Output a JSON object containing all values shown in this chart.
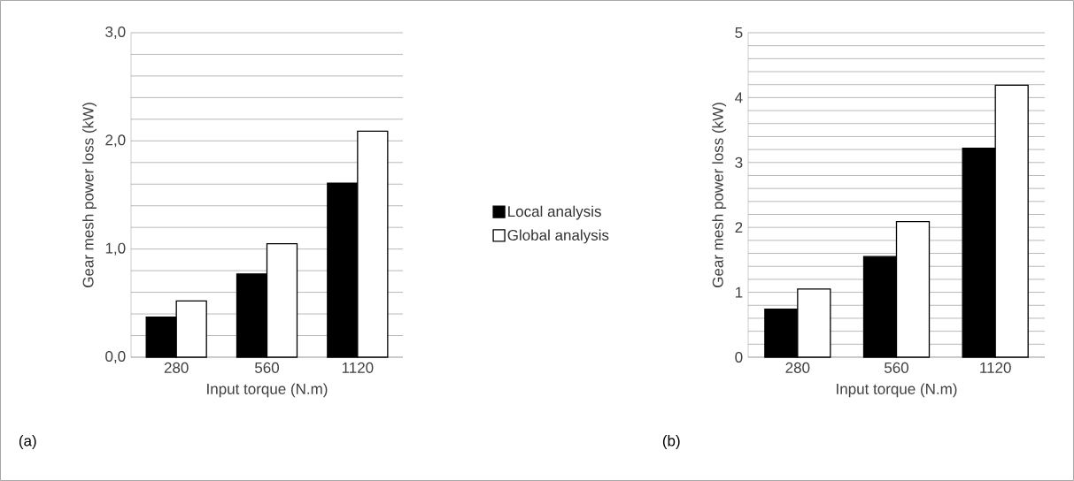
{
  "chart_data": [
    {
      "type": "bar",
      "xlabel": "Input torque (N.m)",
      "ylabel": "Gear mesh power loss (kW)",
      "categories": [
        "280",
        "560",
        "1120"
      ],
      "series": [
        {
          "name": "Local analysis",
          "color": "#000000",
          "values": [
            0.37,
            0.77,
            1.61
          ]
        },
        {
          "name": "Global analysis",
          "color": "#ffffff",
          "values": [
            0.52,
            1.05,
            2.09
          ]
        }
      ],
      "ylim": [
        0,
        3
      ],
      "yticks": [
        {
          "value": 0,
          "label": "0,0"
        },
        {
          "value": 0.2,
          "label": null
        },
        {
          "value": 0.4,
          "label": null
        },
        {
          "value": 0.6,
          "label": null
        },
        {
          "value": 0.8,
          "label": null
        },
        {
          "value": 1,
          "label": "1,0"
        },
        {
          "value": 1.2,
          "label": null
        },
        {
          "value": 1.4,
          "label": null
        },
        {
          "value": 1.6,
          "label": null
        },
        {
          "value": 1.8,
          "label": null
        },
        {
          "value": 2,
          "label": "2,0"
        },
        {
          "value": 2.2,
          "label": null
        },
        {
          "value": 2.4,
          "label": null
        },
        {
          "value": 2.6,
          "label": null
        },
        {
          "value": 2.8,
          "label": null
        },
        {
          "value": 3,
          "label": "3,0"
        }
      ],
      "grid": "y",
      "legend": "right",
      "annotations": [
        "(a)"
      ]
    },
    {
      "type": "bar",
      "xlabel": "Input torque (N.m)",
      "ylabel": "Gear mesh power loss (kW)",
      "categories": [
        "280",
        "560",
        "1120"
      ],
      "series": [
        {
          "color": "#000000",
          "values": [
            0.74,
            1.55,
            3.22
          ]
        },
        {
          "color": "#ffffff",
          "values": [
            1.05,
            2.09,
            4.19
          ]
        }
      ],
      "ylim": [
        0,
        5
      ],
      "yticks": [
        0,
        {
          "value": 0.2,
          "label": null
        },
        {
          "value": 0.4,
          "label": null
        },
        {
          "value": 0.6,
          "label": null
        },
        {
          "value": 0.8,
          "label": null
        },
        1,
        {
          "value": 1.2,
          "label": null
        },
        {
          "value": 1.4,
          "label": null
        },
        {
          "value": 1.6,
          "label": null
        },
        {
          "value": 1.8,
          "label": null
        },
        2,
        {
          "value": 2.2,
          "label": null
        },
        {
          "value": 2.4,
          "label": null
        },
        {
          "value": 2.6,
          "label": null
        },
        {
          "value": 2.8,
          "label": null
        },
        3,
        {
          "value": 3.2,
          "label": null
        },
        {
          "value": 3.4,
          "label": null
        },
        {
          "value": 3.6,
          "label": null
        },
        {
          "value": 3.8,
          "label": null
        },
        4,
        {
          "value": 4.2,
          "label": null
        },
        {
          "value": 4.4,
          "label": null
        },
        {
          "value": 4.6,
          "label": null
        },
        {
          "value": 4.8,
          "label": null
        },
        5
      ],
      "grid": "y",
      "annotations": [
        "(b)"
      ]
    }
  ]
}
